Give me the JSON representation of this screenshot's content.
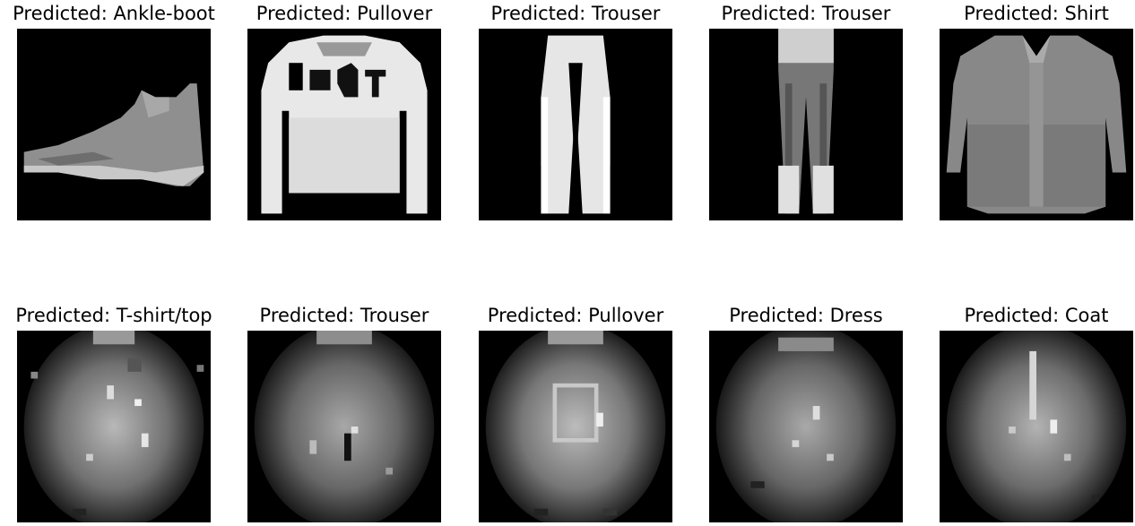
{
  "panels": [
    {
      "title": "Predicted: Ankle-boot",
      "picture": "ankle-boot"
    },
    {
      "title": "Predicted: Pullover",
      "picture": "pullover"
    },
    {
      "title": "Predicted: Trouser",
      "picture": "trouser"
    },
    {
      "title": "Predicted: Trouser",
      "picture": "trouser-jeans"
    },
    {
      "title": "Predicted: Shirt",
      "picture": "shirt"
    },
    {
      "title": "Predicted: T-shirt/top",
      "picture": "noisy-blob"
    },
    {
      "title": "Predicted: Trouser",
      "picture": "noisy-blob"
    },
    {
      "title": "Predicted: Pullover",
      "picture": "noisy-blob"
    },
    {
      "title": "Predicted: Dress",
      "picture": "noisy-blob"
    },
    {
      "title": "Predicted: Coat",
      "picture": "noisy-blob"
    }
  ]
}
